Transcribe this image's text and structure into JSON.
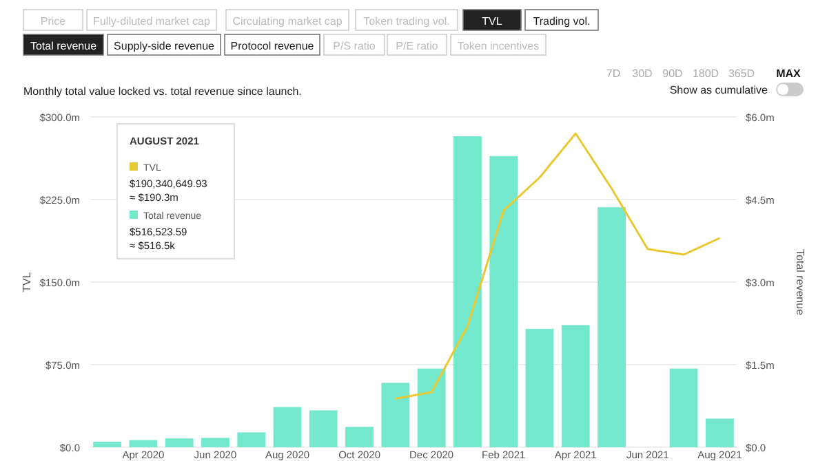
{
  "chart_data": {
    "type": "bar",
    "subtitle": "Monthly total value locked vs. total revenue since launch.",
    "ylabel": "TVL",
    "y2label": "Total revenue",
    "legend_title": "AUGUST 2021",
    "legend": "top left",
    "grid": "y",
    "categories": [
      null,
      "Apr 2020",
      null,
      "Jun 2020",
      null,
      "Aug 2020",
      null,
      "Oct 2020",
      null,
      "Dec 2020",
      null,
      "Feb 2021",
      null,
      "Apr 2021",
      null,
      "Jun 2021",
      null,
      "Aug 2021"
    ],
    "ylim": [
      0,
      300
    ],
    "yticks": [
      {
        "value": 0,
        "label": "$0.0"
      },
      {
        "value": 75,
        "label": "$75.0m"
      },
      {
        "value": 150,
        "label": "$150.0m"
      },
      {
        "value": 225,
        "label": "$225.0m"
      },
      {
        "value": 300,
        "label": "$300.0m"
      }
    ],
    "y2lim": [
      0,
      6
    ],
    "y2ticks": [
      {
        "value": 0,
        "label": "$0.0"
      },
      {
        "value": 1.5,
        "label": "$1.5m"
      },
      {
        "value": 3,
        "label": "$3.0m"
      },
      {
        "value": 4.5,
        "label": "$4.5m"
      },
      {
        "value": 6,
        "label": "$6.0m"
      }
    ],
    "series": [
      {
        "name": "Total revenue",
        "axis": "y2",
        "color": "#74e8cc",
        "values": [
          0.1,
          0.13,
          0.16,
          0.17,
          0.27,
          0.73,
          0.67,
          0.37,
          1.17,
          1.43,
          5.65,
          5.29,
          2.15,
          2.22,
          4.36,
          null,
          1.43,
          0.52
        ]
      },
      {
        "name": "TVL",
        "type": "line",
        "axis": "y",
        "color": "#e8c832",
        "marker": "none",
        "values": [
          null,
          null,
          null,
          null,
          null,
          null,
          null,
          null,
          44,
          50,
          110,
          215,
          245,
          285,
          235,
          180,
          175,
          190
        ]
      }
    ],
    "annotations": [
      "Price",
      "Fully-diluted market cap",
      "Circulating market cap",
      "Token trading vol.",
      "TVL",
      "Trading vol.",
      "Total revenue",
      "Supply-side revenue",
      "Protocol revenue",
      "P/S ratio",
      "P/E ratio",
      "Token incentives",
      "7D",
      "30D",
      "90D",
      "180D",
      "365D",
      "MAX",
      "Show as cumulative",
      "$190,340,649.93",
      "≈ $190.3m",
      "$516,523.59",
      "≈ $516.5k"
    ]
  }
}
